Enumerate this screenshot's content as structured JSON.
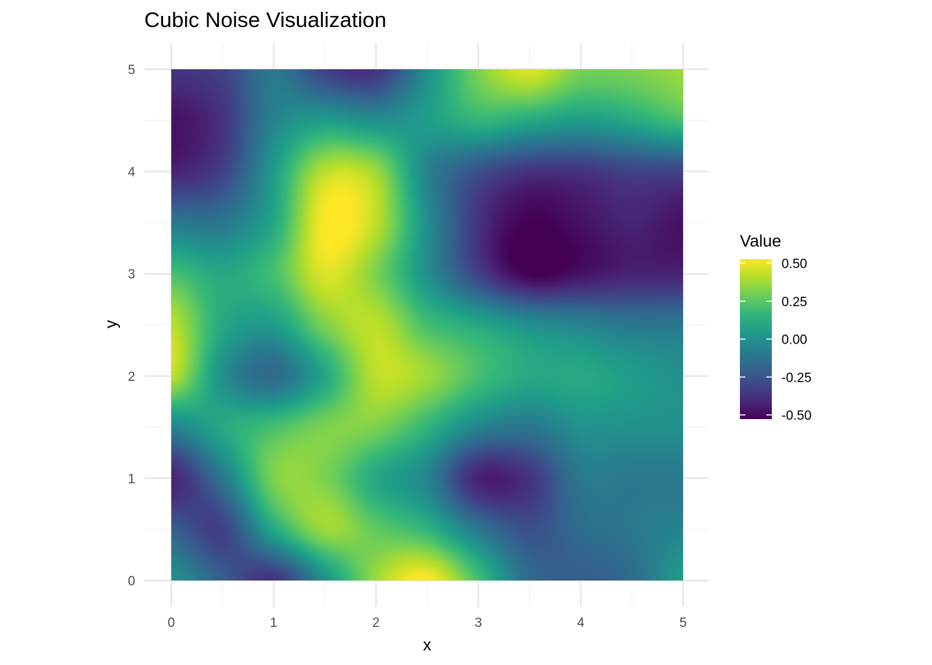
{
  "chart_data": {
    "type": "heatmap",
    "title": "Cubic Noise Visualization",
    "xlabel": "x",
    "ylabel": "y",
    "xlim": [
      0,
      5
    ],
    "ylim": [
      0,
      5
    ],
    "x_ticks": [
      "0",
      "1",
      "2",
      "3",
      "4",
      "5"
    ],
    "y_ticks": [
      "0",
      "1",
      "2",
      "3",
      "4",
      "5"
    ],
    "grid": true,
    "x": [
      0,
      0.5,
      1,
      1.5,
      2,
      2.5,
      3,
      3.5,
      4,
      4.5,
      5
    ],
    "y": [
      0,
      0.5,
      1,
      1.5,
      2,
      2.5,
      3,
      3.5,
      4,
      4.5,
      5
    ],
    "z": [
      [
        0.0,
        -0.2,
        -0.35,
        0.0,
        0.35,
        0.5,
        0.2,
        -0.15,
        -0.2,
        -0.15,
        0.05
      ],
      [
        -0.2,
        -0.3,
        0.1,
        0.35,
        0.25,
        0.15,
        -0.1,
        -0.25,
        -0.15,
        -0.1,
        -0.05
      ],
      [
        -0.4,
        -0.1,
        0.3,
        0.3,
        0.1,
        -0.05,
        -0.4,
        -0.35,
        -0.1,
        -0.1,
        -0.1
      ],
      [
        -0.05,
        0.1,
        0.2,
        0.3,
        0.3,
        0.15,
        -0.05,
        -0.1,
        0.0,
        0.0,
        0.0
      ],
      [
        0.4,
        0.0,
        -0.15,
        0.1,
        0.4,
        0.35,
        0.2,
        0.1,
        0.1,
        0.05,
        0.0
      ],
      [
        0.4,
        0.1,
        0.05,
        0.3,
        0.4,
        0.2,
        0.1,
        0.0,
        -0.05,
        -0.1,
        -0.1
      ],
      [
        0.2,
        0.1,
        0.2,
        0.45,
        0.3,
        0.0,
        -0.3,
        -0.5,
        -0.45,
        -0.4,
        -0.4
      ],
      [
        -0.1,
        -0.1,
        0.1,
        0.5,
        0.4,
        0.0,
        -0.35,
        -0.5,
        -0.45,
        -0.4,
        -0.45
      ],
      [
        -0.4,
        -0.3,
        0.05,
        0.4,
        0.35,
        -0.05,
        -0.25,
        -0.35,
        -0.35,
        -0.3,
        -0.3
      ],
      [
        -0.45,
        -0.35,
        -0.05,
        0.05,
        0.0,
        0.05,
        0.15,
        0.1,
        0.05,
        0.1,
        0.2
      ],
      [
        -0.35,
        -0.3,
        -0.1,
        -0.3,
        -0.35,
        0.0,
        0.3,
        0.45,
        0.3,
        0.3,
        0.35
      ]
    ],
    "legend": {
      "title": "Value",
      "position": "right",
      "min": -0.5,
      "max": 0.5,
      "breaks": [
        0.5,
        0.25,
        0.0,
        -0.25,
        -0.5
      ],
      "labels": [
        "0.50",
        "0.25",
        "0.00",
        "-0.25",
        "-0.50"
      ]
    },
    "colormap": "viridis",
    "colors": [
      "#440154",
      "#482878",
      "#3e4989",
      "#31688e",
      "#26828e",
      "#1f9e89",
      "#35b779",
      "#6ece58",
      "#b5de2b",
      "#fde725"
    ]
  }
}
